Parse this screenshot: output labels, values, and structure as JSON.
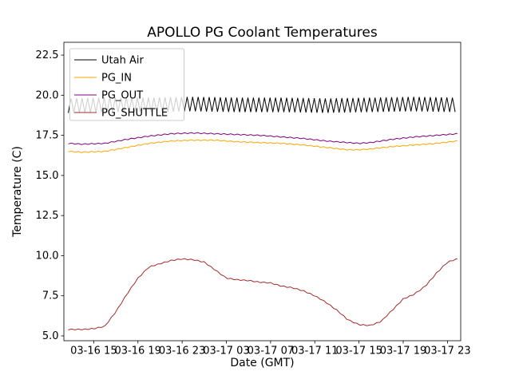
{
  "chart_data": {
    "type": "line",
    "title": "APOLLO PG Coolant Temperatures",
    "xlabel": "Date (GMT)",
    "ylabel": "Temperature (C)",
    "grid": false,
    "legend_position": "upper left",
    "x_unit": "hours since 03-16 12:00 GMT",
    "xlim": [
      0.3,
      36.2
    ],
    "ylim": [
      4.7,
      23.3
    ],
    "xticks": [
      {
        "x": 3,
        "label": "03-16 15"
      },
      {
        "x": 7,
        "label": "03-16 19"
      },
      {
        "x": 11,
        "label": "03-16 23"
      },
      {
        "x": 15,
        "label": "03-17 03"
      },
      {
        "x": 19,
        "label": "03-17 07"
      },
      {
        "x": 23,
        "label": "03-17 11"
      },
      {
        "x": 27,
        "label": "03-17 15"
      },
      {
        "x": 31,
        "label": "03-17 19"
      },
      {
        "x": 35,
        "label": "03-17 23"
      }
    ],
    "yticks": [
      {
        "y": 5.0,
        "label": "5.0"
      },
      {
        "y": 7.5,
        "label": "7.5"
      },
      {
        "y": 10.0,
        "label": "10.0"
      },
      {
        "y": 12.5,
        "label": "12.5"
      },
      {
        "y": 15.0,
        "label": "15.0"
      },
      {
        "y": 17.5,
        "label": "17.5"
      },
      {
        "y": 20.0,
        "label": "20.0"
      },
      {
        "y": 22.5,
        "label": "22.5"
      }
    ],
    "series": [
      {
        "name": "Utah Air",
        "color": "#000000",
        "x": [
          0.7,
          4,
          8,
          12,
          16,
          20,
          24,
          28,
          32,
          35.9
        ],
        "y": [
          19.35,
          19.4,
          19.4,
          19.45,
          19.4,
          19.4,
          19.35,
          19.4,
          19.45,
          19.4
        ],
        "oscillation": {
          "amplitude": 0.45,
          "period_hours": 0.5
        }
      },
      {
        "name": "PG_IN",
        "color": "#ffa500",
        "x": [
          0.7,
          2,
          4,
          6,
          8,
          10,
          12,
          14,
          16,
          18,
          20,
          22,
          24,
          26,
          27,
          28,
          30,
          32,
          34,
          35.9
        ],
        "y": [
          16.5,
          16.45,
          16.5,
          16.75,
          17.0,
          17.15,
          17.2,
          17.2,
          17.1,
          17.05,
          17.0,
          16.9,
          16.75,
          16.6,
          16.6,
          16.65,
          16.8,
          16.9,
          17.0,
          17.15
        ],
        "jitter": 0.03
      },
      {
        "name": "PG_OUT",
        "color": "#800080",
        "x": [
          0.7,
          2,
          4,
          6,
          8,
          10,
          12,
          14,
          16,
          18,
          20,
          22,
          24,
          26,
          27,
          28,
          30,
          32,
          34,
          35.9
        ],
        "y": [
          17.0,
          16.95,
          17.0,
          17.25,
          17.45,
          17.6,
          17.65,
          17.6,
          17.55,
          17.5,
          17.4,
          17.3,
          17.15,
          17.05,
          17.0,
          17.05,
          17.25,
          17.4,
          17.5,
          17.6
        ],
        "jitter": 0.03
      },
      {
        "name": "PG_SHUTTLE",
        "color": "#a52a2a",
        "x": [
          0.7,
          2,
          3,
          4,
          5,
          6,
          7,
          8,
          9,
          10,
          11,
          12,
          13,
          14,
          15,
          16,
          17,
          18,
          19,
          20,
          21,
          22,
          23,
          24,
          25,
          26,
          27,
          28,
          29,
          30,
          31,
          32,
          33,
          34,
          35,
          35.9
        ],
        "y": [
          5.4,
          5.4,
          5.45,
          5.6,
          6.5,
          7.6,
          8.6,
          9.3,
          9.5,
          9.7,
          9.8,
          9.75,
          9.6,
          9.1,
          8.6,
          8.5,
          8.45,
          8.35,
          8.3,
          8.1,
          8.0,
          7.8,
          7.5,
          7.1,
          6.6,
          6.0,
          5.7,
          5.65,
          5.9,
          6.6,
          7.3,
          7.6,
          8.1,
          8.9,
          9.6,
          9.8
        ],
        "jitter": 0.03
      }
    ]
  }
}
